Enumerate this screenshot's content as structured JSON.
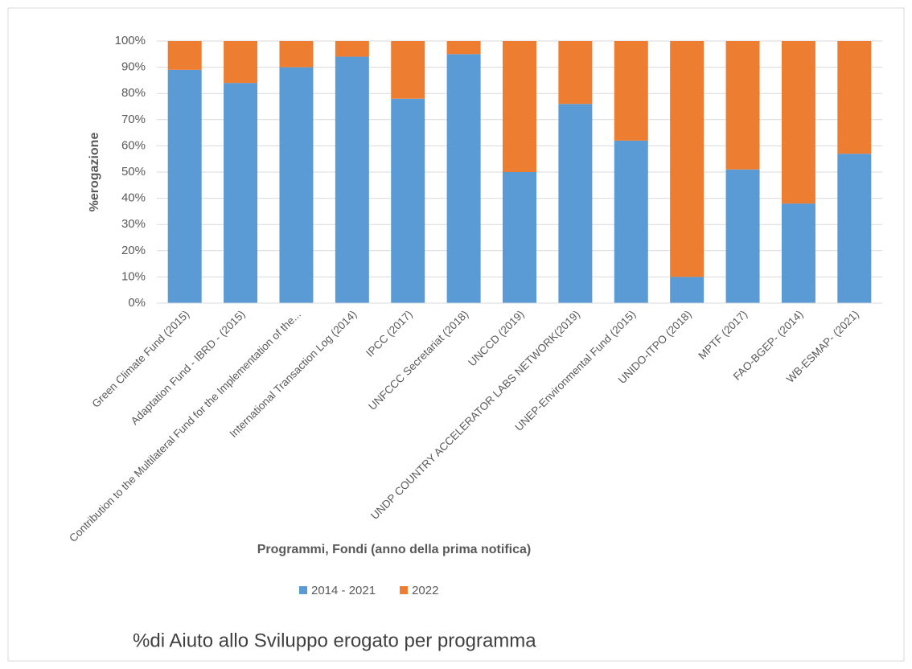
{
  "chart_data": {
    "type": "stacked_bar",
    "title": "%di Aiuto allo Sviluppo erogato per programma",
    "x_label": "Programmi, Fondi (anno della prima notifica)",
    "y_label": "%erogazione",
    "categories": [
      "Green Climate Fund (2015)",
      "Adaptation Fund - IBRD - (2015)",
      "Contribution to the Multilateral Fund for the Implementation of the...",
      "International Transaction Log (2014)",
      "IPCC (2017)",
      "UNFCCC Secretariat (2018)",
      "UNCCD (2019)",
      "UNDP COUNTRY ACCELERATOR LABS NETWORK(2019)",
      "UNEP-Environmental Fund (2015)",
      "UNIDO-ITPO (2018)",
      "MPTF (2017)",
      "FAO-BGEP- (2014)",
      "WB-ESMAP- (2021)"
    ],
    "series": [
      {
        "name": "2014 - 2021",
        "color": "#5b9bd5",
        "values": [
          89,
          84,
          90,
          94,
          78,
          95,
          50,
          76,
          62,
          10,
          51,
          38,
          57
        ]
      },
      {
        "name": "2022",
        "color": "#ed7d31",
        "values": [
          11,
          16,
          10,
          6,
          22,
          5,
          50,
          24,
          38,
          90,
          49,
          62,
          43
        ]
      }
    ],
    "ylim": [
      0,
      100
    ],
    "yticks": [
      {
        "value": 0,
        "label": "0%"
      },
      {
        "value": 10,
        "label": "10%"
      },
      {
        "value": 20,
        "label": "20%"
      },
      {
        "value": 30,
        "label": "30%"
      },
      {
        "value": 40,
        "label": "40%"
      },
      {
        "value": 50,
        "label": "50%"
      },
      {
        "value": 60,
        "label": "60%"
      },
      {
        "value": 70,
        "label": "70%"
      },
      {
        "value": 80,
        "label": "80%"
      },
      {
        "value": 90,
        "label": "90%"
      },
      {
        "value": 100,
        "label": "100%"
      }
    ],
    "grid": true,
    "legend": "bottom"
  }
}
